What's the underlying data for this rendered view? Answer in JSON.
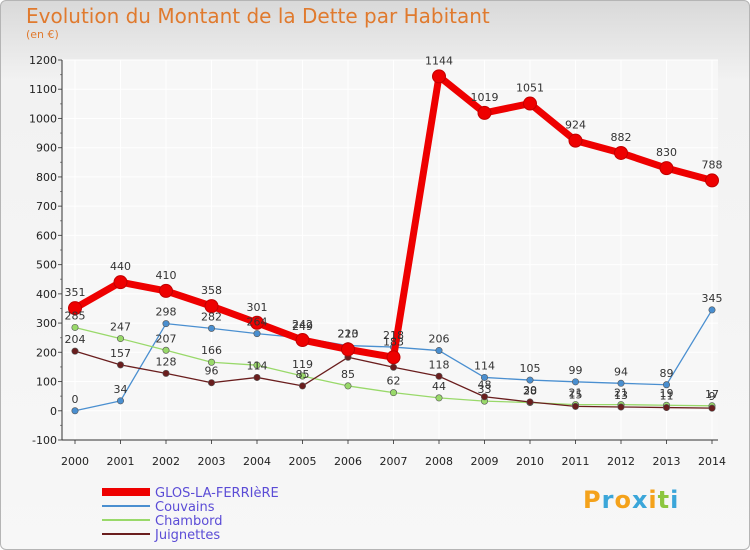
{
  "title": "Evolution du Montant de la Dette par Habitant",
  "unit": "(en €)",
  "logo": {
    "letters": [
      {
        "ch": "P",
        "color": "#f4a21b"
      },
      {
        "ch": "r",
        "color": "#3ba6d9"
      },
      {
        "ch": "o",
        "color": "#f4a21b"
      },
      {
        "ch": "x",
        "color": "#3ba6d9"
      },
      {
        "ch": "i",
        "color": "#f4a21b"
      },
      {
        "ch": "t",
        "color": "#8cc63f"
      },
      {
        "ch": "i",
        "color": "#3ba6d9"
      }
    ]
  },
  "chart_data": {
    "type": "line",
    "title": "Evolution du Montant de la Dette par Habitant",
    "subtitle": "(en €)",
    "xlabel": "",
    "ylabel": "",
    "ylim": [
      -100,
      1200
    ],
    "yticks": [
      -100,
      0,
      100,
      200,
      300,
      400,
      500,
      600,
      700,
      800,
      900,
      1000,
      1100,
      1200
    ],
    "grid": true,
    "legend_position": "bottom-left",
    "x": [
      "2000",
      "2001",
      "2002",
      "2003",
      "2004",
      "2005",
      "2006",
      "2007",
      "2008",
      "2009",
      "2010",
      "2011",
      "2012",
      "2013",
      "2014"
    ],
    "series": [
      {
        "name": "GLOS-LA-FERRIèRE",
        "color": "#ee0000",
        "emphasis": true,
        "values": [
          351,
          440,
          410,
          358,
          301,
          242,
          210,
          183,
          1144,
          1019,
          1051,
          924,
          882,
          830,
          788
        ],
        "labels": [
          "351",
          "440",
          "410",
          "358",
          "301",
          "242",
          "210",
          "183",
          "1144",
          "1019",
          "1051",
          "924",
          "882",
          "830",
          "788"
        ]
      },
      {
        "name": "Couvains",
        "color": "#4a8fd0",
        "values": [
          0,
          34,
          298,
          282,
          264,
          249,
          223,
          218,
          206,
          114,
          105,
          99,
          94,
          89,
          345
        ],
        "labels": [
          "0",
          "34",
          "298",
          "282",
          "264",
          "249",
          "223",
          "218",
          "206",
          "114",
          "105",
          "99",
          "94",
          "89",
          "345"
        ]
      },
      {
        "name": "Chambord",
        "color": "#99d96a",
        "values": [
          285,
          247,
          207,
          166,
          156,
          119,
          85,
          62,
          44,
          33,
          28,
          21,
          21,
          19,
          17
        ],
        "labels": [
          "285",
          "247",
          "207",
          "166",
          "",
          "119",
          "85",
          "62",
          "44",
          "33",
          "28",
          "21",
          "21",
          "19",
          "17"
        ]
      },
      {
        "name": "Juignettes",
        "color": "#6a1e1e",
        "values": [
          204,
          157,
          128,
          96,
          114,
          85,
          183,
          149,
          118,
          48,
          30,
          15,
          13,
          11,
          9
        ],
        "labels": [
          "204",
          "157",
          "128",
          "96",
          "114",
          "85",
          "",
          "",
          "118",
          "48",
          "30",
          "15",
          "13",
          "11",
          "9"
        ]
      }
    ]
  }
}
